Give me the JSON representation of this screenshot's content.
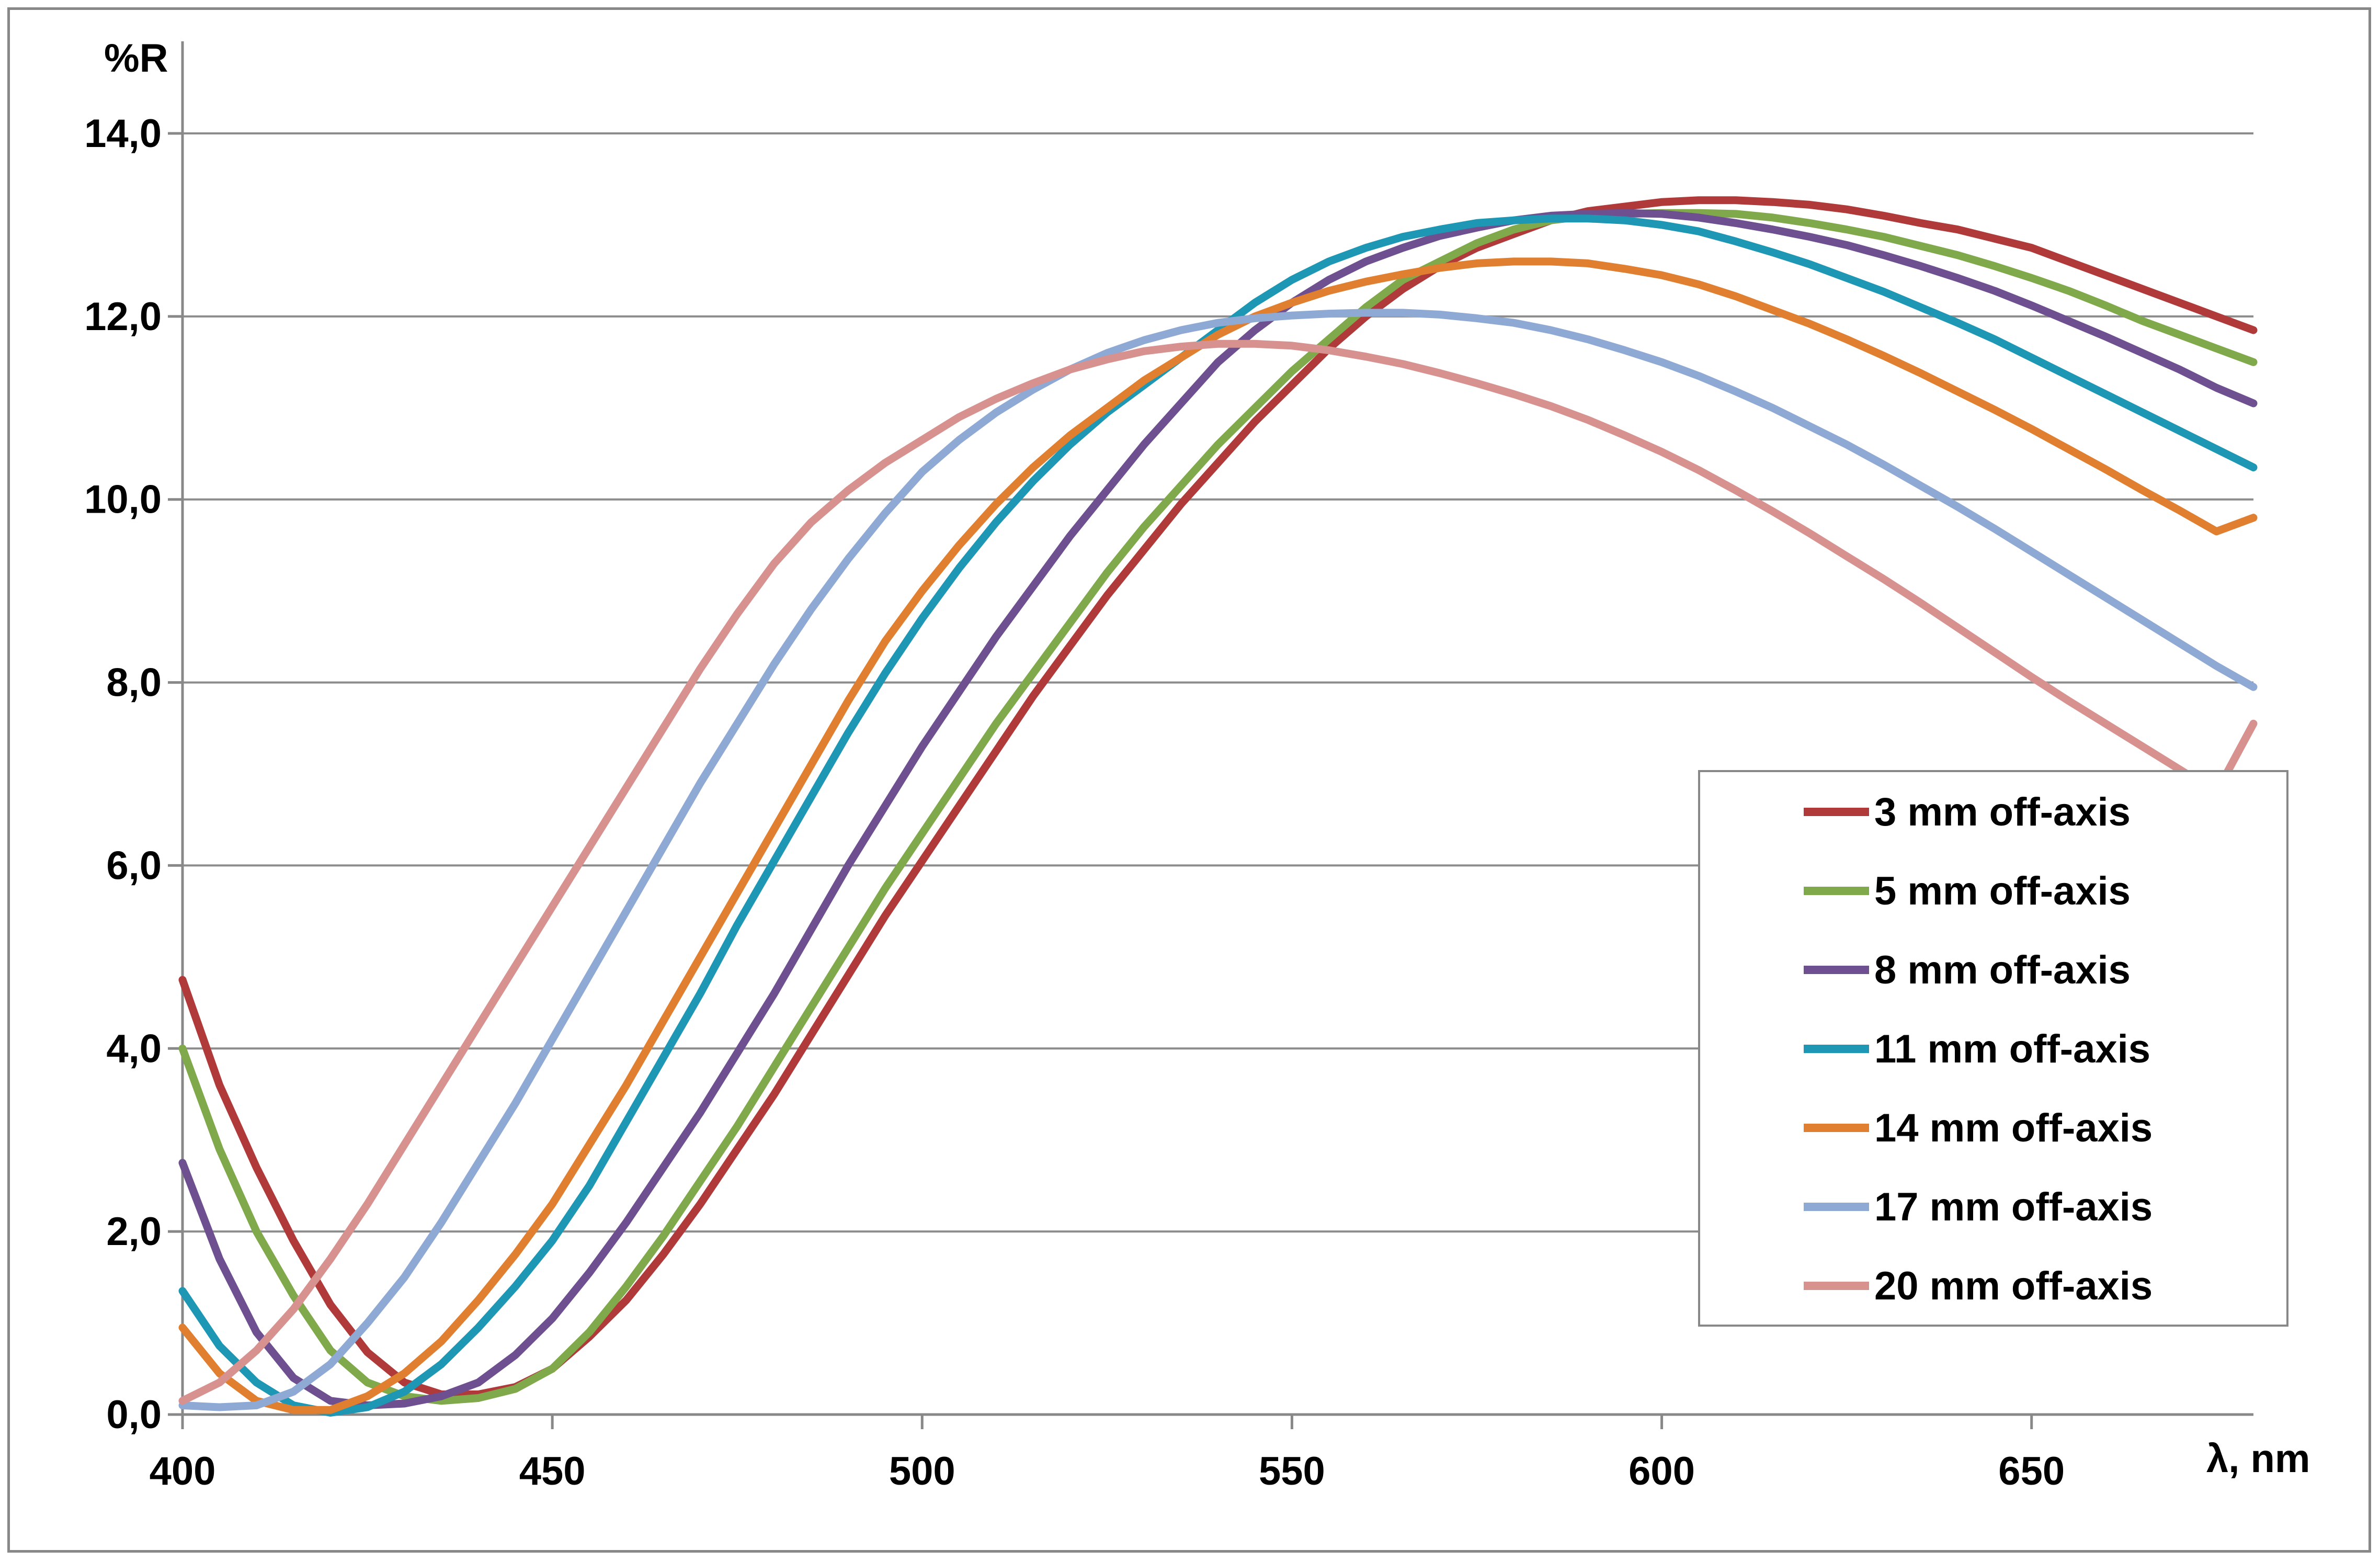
{
  "chart_data": {
    "type": "line",
    "xlabel": "λ, nm",
    "ylabel": "%R",
    "xlim": [
      400,
      680
    ],
    "ylim": [
      0,
      14
    ],
    "x_ticks": [
      400,
      450,
      500,
      550,
      600,
      650
    ],
    "x_tick_labels": [
      "400",
      "450",
      "500",
      "550",
      "600",
      "650"
    ],
    "y_ticks": [
      0,
      2,
      4,
      6,
      8,
      10,
      12,
      14
    ],
    "y_tick_labels": [
      "0,0",
      "2,0",
      "4,0",
      "6,0",
      "8,0",
      "10,0",
      "12,0",
      "14,0"
    ],
    "grid": "horizontal",
    "legend_position": "right",
    "x": [
      400,
      405,
      410,
      415,
      420,
      425,
      430,
      435,
      440,
      445,
      450,
      455,
      460,
      465,
      470,
      475,
      480,
      485,
      490,
      495,
      500,
      505,
      510,
      515,
      520,
      525,
      530,
      535,
      540,
      545,
      550,
      555,
      560,
      565,
      570,
      575,
      580,
      585,
      590,
      595,
      600,
      605,
      610,
      615,
      620,
      625,
      630,
      635,
      640,
      645,
      650,
      655,
      660,
      665,
      670,
      675,
      680
    ],
    "series": [
      {
        "name": "3 mm off-axis",
        "color": "#b03a3a",
        "values": [
          4.75,
          3.6,
          2.7,
          1.9,
          1.2,
          0.68,
          0.35,
          0.22,
          0.22,
          0.3,
          0.5,
          0.85,
          1.25,
          1.75,
          2.3,
          2.9,
          3.5,
          4.15,
          4.8,
          5.45,
          6.05,
          6.65,
          7.25,
          7.85,
          8.4,
          8.95,
          9.45,
          9.95,
          10.4,
          10.85,
          11.25,
          11.65,
          12.0,
          12.3,
          12.55,
          12.75,
          12.9,
          13.05,
          13.15,
          13.2,
          13.25,
          13.27,
          13.27,
          13.25,
          13.22,
          13.17,
          13.1,
          13.02,
          12.95,
          12.85,
          12.75,
          12.6,
          12.45,
          12.3,
          12.15,
          12.0,
          11.85
        ]
      },
      {
        "name": "5 mm off-axis",
        "color": "#7fa94a",
        "values": [
          4.0,
          2.9,
          2.0,
          1.3,
          0.7,
          0.35,
          0.2,
          0.15,
          0.18,
          0.28,
          0.5,
          0.9,
          1.4,
          1.95,
          2.55,
          3.15,
          3.8,
          4.45,
          5.1,
          5.75,
          6.35,
          6.95,
          7.55,
          8.1,
          8.65,
          9.2,
          9.7,
          10.15,
          10.6,
          11.0,
          11.4,
          11.75,
          12.1,
          12.4,
          12.6,
          12.8,
          12.95,
          13.05,
          13.1,
          13.12,
          13.13,
          13.13,
          13.12,
          13.08,
          13.02,
          12.95,
          12.87,
          12.77,
          12.67,
          12.55,
          12.42,
          12.28,
          12.12,
          11.95,
          11.8,
          11.65,
          11.5
        ]
      },
      {
        "name": "8 mm off-axis",
        "color": "#6e4f90",
        "values": [
          2.75,
          1.7,
          0.9,
          0.4,
          0.15,
          0.1,
          0.12,
          0.2,
          0.35,
          0.65,
          1.05,
          1.55,
          2.1,
          2.7,
          3.3,
          3.95,
          4.6,
          5.3,
          6.0,
          6.65,
          7.3,
          7.9,
          8.5,
          9.05,
          9.6,
          10.1,
          10.6,
          11.05,
          11.5,
          11.85,
          12.15,
          12.4,
          12.6,
          12.75,
          12.88,
          12.97,
          13.05,
          13.1,
          13.12,
          13.13,
          13.12,
          13.08,
          13.02,
          12.95,
          12.87,
          12.78,
          12.67,
          12.55,
          12.42,
          12.28,
          12.12,
          11.95,
          11.78,
          11.6,
          11.42,
          11.22,
          11.05
        ]
      },
      {
        "name": "11 mm off-axis",
        "color": "#1d97b3",
        "values": [
          1.35,
          0.75,
          0.35,
          0.1,
          0.02,
          0.08,
          0.25,
          0.55,
          0.95,
          1.4,
          1.9,
          2.5,
          3.2,
          3.9,
          4.6,
          5.35,
          6.05,
          6.75,
          7.45,
          8.1,
          8.7,
          9.25,
          9.75,
          10.2,
          10.6,
          10.95,
          11.25,
          11.55,
          11.85,
          12.15,
          12.4,
          12.6,
          12.75,
          12.87,
          12.95,
          13.02,
          13.05,
          13.07,
          13.07,
          13.05,
          13.0,
          12.93,
          12.82,
          12.7,
          12.57,
          12.42,
          12.27,
          12.1,
          11.93,
          11.75,
          11.55,
          11.35,
          11.15,
          10.95,
          10.75,
          10.55,
          10.35
        ]
      },
      {
        "name": "14 mm off-axis",
        "color": "#e07f2f",
        "values": [
          0.95,
          0.45,
          0.15,
          0.05,
          0.05,
          0.2,
          0.45,
          0.8,
          1.25,
          1.75,
          2.3,
          2.95,
          3.6,
          4.3,
          5.0,
          5.7,
          6.4,
          7.1,
          7.8,
          8.45,
          9.0,
          9.5,
          9.95,
          10.35,
          10.7,
          11.0,
          11.3,
          11.55,
          11.8,
          12.0,
          12.15,
          12.28,
          12.38,
          12.46,
          12.53,
          12.58,
          12.6,
          12.6,
          12.58,
          12.52,
          12.45,
          12.35,
          12.22,
          12.07,
          11.92,
          11.75,
          11.57,
          11.38,
          11.18,
          10.98,
          10.77,
          10.55,
          10.33,
          10.1,
          9.88,
          9.65,
          9.8
        ]
      },
      {
        "name": "17 mm off-axis",
        "color": "#8fa9d5",
        "values": [
          0.1,
          0.08,
          0.1,
          0.25,
          0.55,
          1.0,
          1.5,
          2.1,
          2.75,
          3.4,
          4.1,
          4.8,
          5.5,
          6.2,
          6.9,
          7.55,
          8.2,
          8.8,
          9.35,
          9.85,
          10.3,
          10.65,
          10.95,
          11.2,
          11.42,
          11.6,
          11.74,
          11.85,
          11.93,
          11.98,
          12.01,
          12.03,
          12.04,
          12.04,
          12.02,
          11.98,
          11.93,
          11.85,
          11.75,
          11.63,
          11.5,
          11.35,
          11.18,
          11.0,
          10.8,
          10.6,
          10.38,
          10.15,
          9.92,
          9.68,
          9.43,
          9.18,
          8.93,
          8.68,
          8.43,
          8.18,
          7.95
        ]
      },
      {
        "name": "20 mm off-axis",
        "color": "#d79290",
        "values": [
          0.15,
          0.35,
          0.7,
          1.15,
          1.7,
          2.3,
          2.95,
          3.6,
          4.25,
          4.9,
          5.55,
          6.2,
          6.85,
          7.5,
          8.15,
          8.75,
          9.3,
          9.75,
          10.1,
          10.4,
          10.65,
          10.9,
          11.1,
          11.27,
          11.42,
          11.53,
          11.62,
          11.67,
          11.7,
          11.7,
          11.68,
          11.63,
          11.56,
          11.48,
          11.38,
          11.27,
          11.15,
          11.02,
          10.87,
          10.7,
          10.52,
          10.32,
          10.1,
          9.87,
          9.63,
          9.38,
          9.13,
          8.87,
          8.6,
          8.33,
          8.06,
          7.8,
          7.55,
          7.3,
          7.05,
          6.8,
          7.55
        ]
      }
    ]
  }
}
